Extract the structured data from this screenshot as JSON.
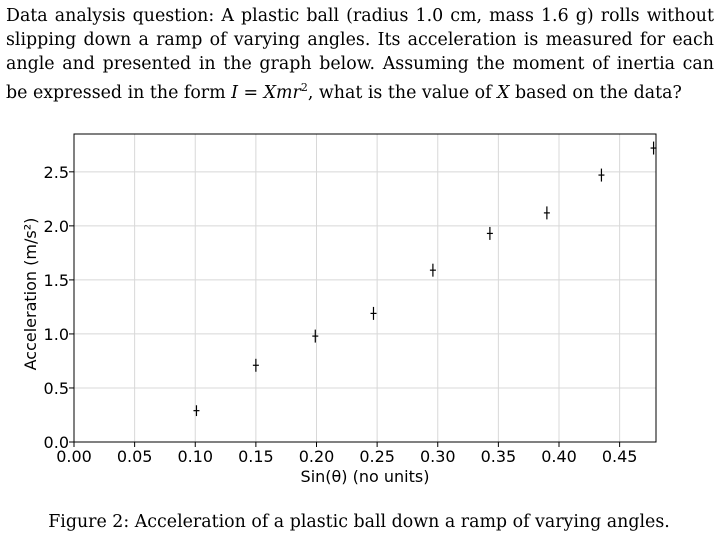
{
  "question": {
    "prefix": "Data analysis question:",
    "body": "A plastic ball (radius 1.0 cm, mass 1.6 g) rolls without slipping down a ramp of varying angles. Its acceleration is measured for each angle and presented in the graph below. Assuming the moment of inertia can be expressed in the form",
    "formula_I": "I",
    "formula_eq": " = ",
    "formula_rhs": "Xmr",
    "formula_exp": "2",
    "suffix": ", what is the value of",
    "var_X": "X",
    "tail": "based on the data?"
  },
  "caption": "Figure 2: Acceleration of a plastic ball down a ramp of varying angles.",
  "chart_data": {
    "type": "scatter",
    "xlabel": "Sin(θ) (no units)",
    "ylabel": "Acceleration (m/s²)",
    "xlim": [
      0.0,
      0.48
    ],
    "ylim": [
      0.0,
      2.85
    ],
    "xticks": [
      "0.00",
      "0.05",
      "0.10",
      "0.15",
      "0.20",
      "0.25",
      "0.30",
      "0.35",
      "0.40",
      "0.45"
    ],
    "yticks": [
      "0.0",
      "0.5",
      "1.0",
      "1.5",
      "2.0",
      "2.5"
    ],
    "grid": true,
    "points": [
      {
        "x": 0.101,
        "y": 0.29,
        "yerr": 0.05
      },
      {
        "x": 0.15,
        "y": 0.71,
        "yerr": 0.06
      },
      {
        "x": 0.199,
        "y": 0.98,
        "yerr": 0.06
      },
      {
        "x": 0.247,
        "y": 1.19,
        "yerr": 0.06
      },
      {
        "x": 0.296,
        "y": 1.59,
        "yerr": 0.06
      },
      {
        "x": 0.343,
        "y": 1.93,
        "yerr": 0.06
      },
      {
        "x": 0.39,
        "y": 2.12,
        "yerr": 0.06
      },
      {
        "x": 0.435,
        "y": 2.47,
        "yerr": 0.06
      },
      {
        "x": 0.478,
        "y": 2.72,
        "yerr": 0.06
      }
    ]
  }
}
